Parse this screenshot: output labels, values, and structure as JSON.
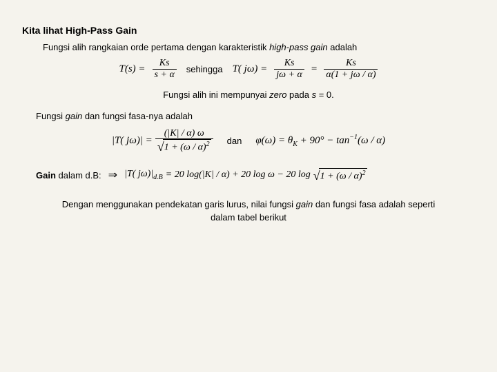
{
  "heading": "Kita lihat High-Pass Gain",
  "para1_a": "Fungsi alih rangkaian orde pertama dengan karakteristik ",
  "para1_b": "high-pass gain",
  "para1_c": " adalah",
  "eq1": {
    "lhs": "T(s) =",
    "f1_num": "Ks",
    "f1_den": "s + α",
    "txt1": "sehingga",
    "mid": "T( jω) =",
    "f2_num": "Ks",
    "f2_den": "jω + α",
    "eq": "=",
    "f3_num": "Ks",
    "f3_den": "α(1 + jω / α)"
  },
  "mid_a": "Fungsi alih ini mempunyai ",
  "mid_b": "zero",
  "mid_c": " pada ",
  "mid_d": "s",
  "mid_e": " = 0.",
  "para2_a": "Fungsi ",
  "para2_b": "gain",
  "para2_c": " dan fungsi fasa-nya adalah",
  "eq2": {
    "lhs": "|T( jω)| =",
    "num_a": "(|K| / α) ω",
    "den_a": "1 + (ω / α)",
    "den_exp": "2",
    "txt": "dan",
    "rhs": "φ(ω) = θ",
    "rhs_sub": "K",
    "rhs2": " + 90° − tan",
    "rhs_exp": "−1",
    "rhs3": "(ω / α)"
  },
  "gain_label_a": "Gain",
  "gain_label_b": " dalam d.B:",
  "arrow": "⇒",
  "eq3": {
    "lhs_open": "|T( jω)|",
    "sub": "d.B",
    "p1": " = 20 log(|K| / α) + 20 log ω − 20 log",
    "sq": "1 + (ω / α)",
    "sq_exp": "2"
  },
  "final_a": "Dengan menggunakan pendekatan garis lurus, nilai fungsi ",
  "final_b": "gain",
  "final_c": " dan fungsi fasa adalah seperti dalam tabel berikut"
}
